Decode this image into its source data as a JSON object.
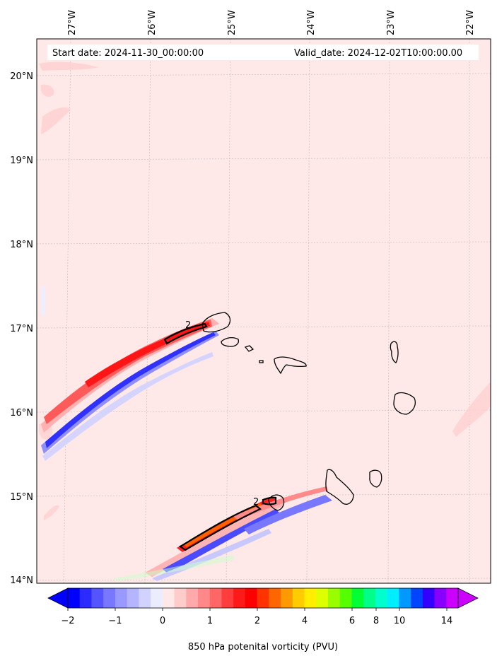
{
  "map": {
    "start_date": "Start date: 2024-11-30_00:00:00",
    "valid_date": "Valid_date: 2024-12-02T10:00:00.00",
    "lon_labels": [
      "27°W",
      "26°W",
      "25°W",
      "24°W",
      "23°W",
      "22°W"
    ],
    "lat_labels": [
      "20°N",
      "19°N",
      "18°N",
      "17°N",
      "16°N",
      "15°N",
      "14°N"
    ],
    "contour_labels": [
      "2",
      "2"
    ],
    "background_color": "#fee8e8",
    "coastline_color": "#000000",
    "gridline_color": "#bbbbbb"
  },
  "colorbar": {
    "label": "850 hPa potenital vorticity (PVU)",
    "tick_labels": [
      "−2",
      "−1",
      "0",
      "1",
      "2",
      "4",
      "6",
      "8",
      "10",
      "14"
    ],
    "colors": [
      "#0000ff",
      "#2b2bff",
      "#5555ff",
      "#7777ff",
      "#9999ff",
      "#b4b4ff",
      "#d2d2ff",
      "#ececff",
      "#ffe8e8",
      "#ffcccc",
      "#ffaaaa",
      "#ff8888",
      "#ff6666",
      "#ff3d3d",
      "#ff1a1a",
      "#ff0000",
      "#ff3300",
      "#ff6600",
      "#ff9900",
      "#ffcc00",
      "#ffee00",
      "#ddff00",
      "#99ff00",
      "#55ff00",
      "#00ff33",
      "#00ff88",
      "#00ffcc",
      "#00eeff",
      "#0099ff",
      "#0044ff",
      "#3300ff",
      "#8800ff",
      "#cc00ff"
    ],
    "under_color": "#0000ff",
    "over_color": "#cc00ff"
  }
}
